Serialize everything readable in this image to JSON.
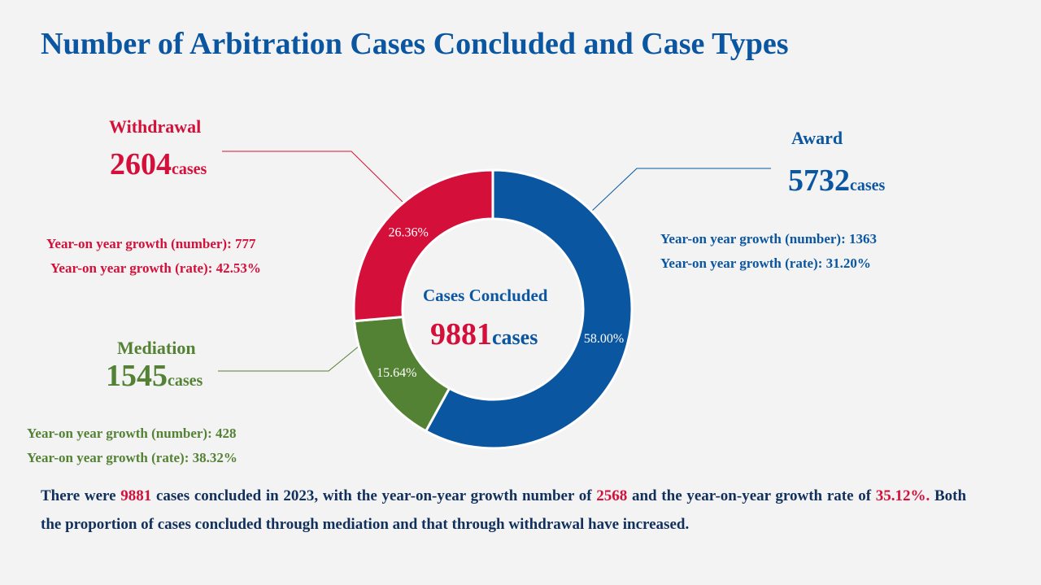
{
  "title": "Number of Arbitration Cases Concluded and Case Types",
  "colors": {
    "award": "#0b56a0",
    "withdrawal": "#d4103a",
    "mediation": "#548235",
    "title": "#0b56a0"
  },
  "center": {
    "label": "Cases Concluded",
    "total": "9881",
    "unit": "cases"
  },
  "award": {
    "name": "Award",
    "count": "5732",
    "unit": "cases",
    "growth_number": "Year-on year growth (number): 1363",
    "growth_rate": "Year-on year growth (rate): 31.20%"
  },
  "withdrawal": {
    "name": "Withdrawal",
    "count": "2604",
    "unit": "cases",
    "growth_number": "Year-on year growth (number): 777",
    "growth_rate": "Year-on year growth (rate): 42.53%"
  },
  "mediation": {
    "name": "Mediation",
    "count": "1545",
    "unit": "cases",
    "growth_number": "Year-on year growth (number): 428",
    "growth_rate": "Year-on year growth (rate): 38.32%"
  },
  "summary": {
    "p1": "There were ",
    "v1": "9881",
    "p2": " cases concluded in 2023, with the year-on-year growth number of ",
    "v2": "2568",
    "p3": " and the year-on-year growth rate of ",
    "v3": "35.12%.",
    "p4": " Both the proportion of cases concluded through mediation and that through withdrawal have increased."
  },
  "chart_data": {
    "type": "pie",
    "categories": [
      "Award",
      "Mediation",
      "Withdrawal"
    ],
    "values": [
      58.0,
      15.64,
      26.36
    ],
    "counts": [
      5732,
      1545,
      2604
    ],
    "data_labels": [
      "58.00%",
      "15.64%",
      "26.36%"
    ],
    "colors": [
      "#0b56a0",
      "#548235",
      "#d4103a"
    ]
  }
}
